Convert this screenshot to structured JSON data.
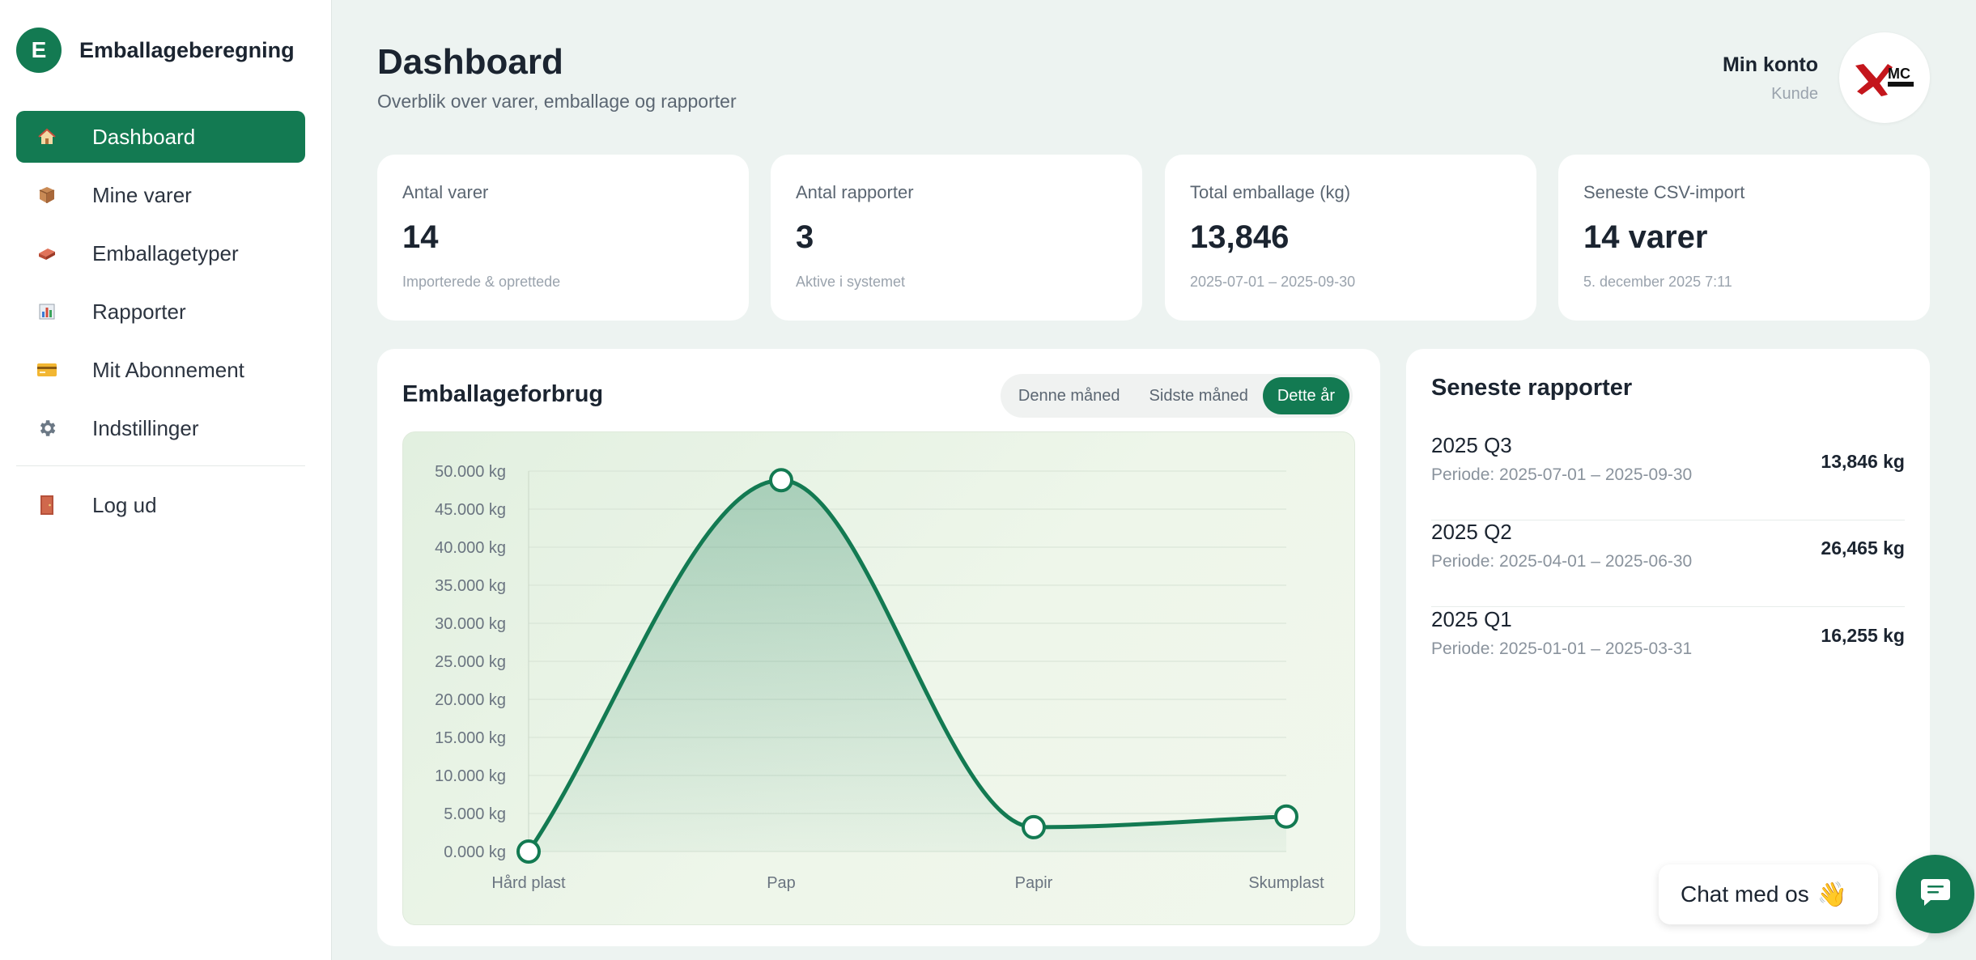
{
  "brand": {
    "initial": "E",
    "name": "Emballageberegning"
  },
  "nav": {
    "items": [
      {
        "label": "Dashboard",
        "icon": "home-icon",
        "active": true
      },
      {
        "label": "Mine varer",
        "icon": "box-icon"
      },
      {
        "label": "Emballagetyper",
        "icon": "brick-icon"
      },
      {
        "label": "Rapporter",
        "icon": "bar-chart-icon"
      },
      {
        "label": "Mit Abonnement",
        "icon": "credit-card-icon"
      },
      {
        "label": "Indstillinger",
        "icon": "gear-icon"
      }
    ],
    "logout": {
      "label": "Log ud",
      "icon": "door-icon"
    }
  },
  "header": {
    "title": "Dashboard",
    "subtitle": "Overblik over varer, emballage og rapporter",
    "account_name": "Min konto",
    "account_role": "Kunde",
    "avatar_text": "MC"
  },
  "stats": [
    {
      "label": "Antal varer",
      "value": "14",
      "note": "Importerede & oprettede"
    },
    {
      "label": "Antal rapporter",
      "value": "3",
      "note": "Aktive i systemet"
    },
    {
      "label": "Total emballage (kg)",
      "value": "13,846",
      "note": "2025-07-01 – 2025-09-30"
    },
    {
      "label": "Seneste CSV-import",
      "value": "14 varer",
      "note": "5. december 2025 7:11"
    }
  ],
  "chart_card": {
    "title": "Emballageforbrug",
    "periods": [
      {
        "label": "Denne måned",
        "active": false
      },
      {
        "label": "Sidste måned",
        "active": false
      },
      {
        "label": "Dette år",
        "active": true
      }
    ]
  },
  "chart_data": {
    "type": "area",
    "categories": [
      "Hård plast",
      "Pap",
      "Papir",
      "Skumplast"
    ],
    "values": [
      0,
      48800,
      3200,
      4600
    ],
    "ylim": [
      0,
      50000
    ],
    "yticks": [
      "0.000 kg",
      "5.000 kg",
      "10.000 kg",
      "15.000 kg",
      "20.000 kg",
      "25.000 kg",
      "30.000 kg",
      "35.000 kg",
      "40.000 kg",
      "45.000 kg",
      "50.000 kg"
    ],
    "grid": true,
    "color": "#137a52"
  },
  "reports": {
    "title": "Seneste rapporter",
    "items": [
      {
        "name": "2025 Q3",
        "period": "Periode: 2025-07-01 – 2025-09-30",
        "kg": "13,846 kg"
      },
      {
        "name": "2025 Q2",
        "period": "Periode: 2025-04-01 – 2025-06-30",
        "kg": "26,465 kg"
      },
      {
        "name": "2025 Q1",
        "period": "Periode: 2025-01-01 – 2025-03-31",
        "kg": "16,255 kg"
      }
    ]
  },
  "chat": {
    "label": "Chat med os",
    "wave": "👋",
    "icon": "chat-icon"
  },
  "colors": {
    "accent": "#137a52",
    "background": "#edf3f1"
  }
}
